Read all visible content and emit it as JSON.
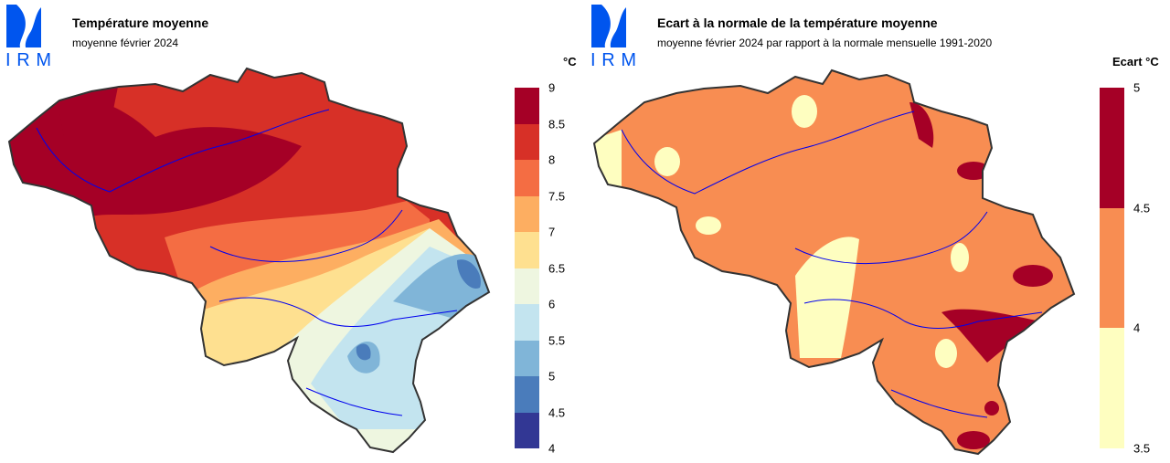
{
  "logo_text": "IRM",
  "left": {
    "title": "Température moyenne",
    "subtitle": "moyenne février 2024",
    "unit": "°C",
    "legend_ticks": [
      "9",
      "8.5",
      "8",
      "7.5",
      "7",
      "6.5",
      "6",
      "5.5",
      "5",
      "4.5",
      "4"
    ],
    "legend_colors": [
      "#a50026",
      "#d73027",
      "#f46d43",
      "#fdae61",
      "#fee090",
      "#eef6e0",
      "#c3e4ef",
      "#80b5d8",
      "#4a7cbb",
      "#323794"
    ]
  },
  "right": {
    "title": "Ecart à la normale de la température moyenne",
    "subtitle": "moyenne février 2024 par rapport à la normale mensuelle 1991-2020",
    "unit": "Ecart °C",
    "legend_ticks": [
      "5",
      "4.5",
      "4",
      "3.5"
    ],
    "legend_colors": [
      "#a50026",
      "#f88d52",
      "#fefec0"
    ]
  }
}
